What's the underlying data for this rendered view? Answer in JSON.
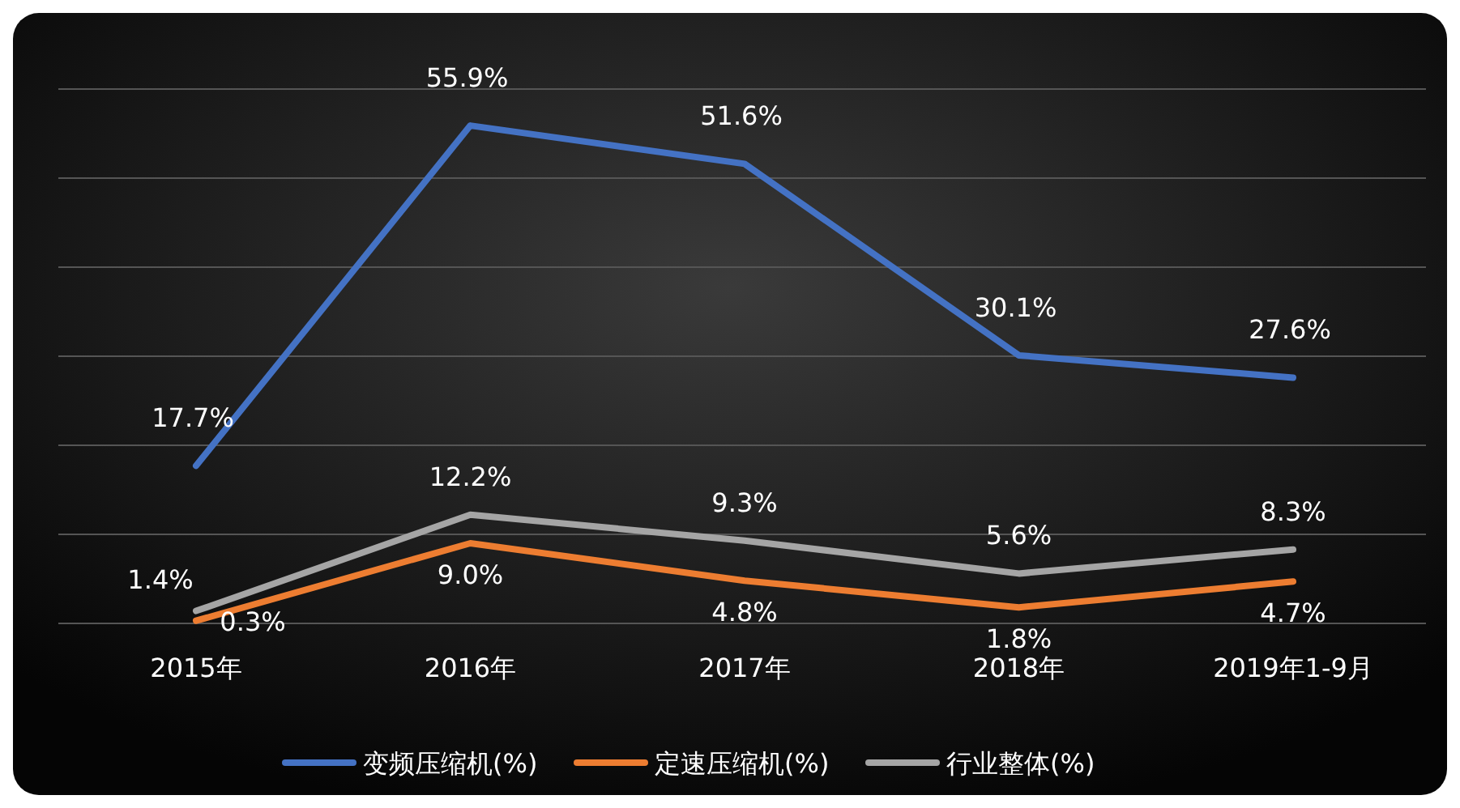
{
  "chart_data": {
    "type": "line",
    "categories": [
      "2015年",
      "2016年",
      "2017年",
      "2018年",
      "2019年1-9月"
    ],
    "series": [
      {
        "name": "变频压缩机(%)",
        "color": "#4472c4",
        "values": [
          17.7,
          55.9,
          51.6,
          30.1,
          27.6
        ],
        "value_labels": [
          "17.7%",
          "55.9%",
          "51.6%",
          "30.1%",
          "27.6%"
        ]
      },
      {
        "name": "定速压缩机(%)",
        "color": "#ed7d31",
        "values": [
          0.3,
          9.0,
          4.8,
          1.8,
          4.7
        ],
        "value_labels": [
          "0.3%",
          "9.0%",
          "4.8%",
          "1.8%",
          "4.7%"
        ]
      },
      {
        "name": "行业整体(%)",
        "color": "#a5a5a5",
        "values": [
          1.4,
          12.2,
          9.3,
          5.6,
          8.3
        ],
        "value_labels": [
          "1.4%",
          "12.2%",
          "9.3%",
          "5.6%",
          "8.3%"
        ]
      }
    ],
    "ylim": [
      0,
      60
    ],
    "yticks": [
      {
        "value": 0,
        "label": null
      },
      {
        "value": 10,
        "label": null
      },
      {
        "value": 20,
        "label": null
      },
      {
        "value": 30,
        "label": null
      },
      {
        "value": 40,
        "label": null
      },
      {
        "value": 50,
        "label": null
      },
      {
        "value": 60,
        "label": null
      }
    ],
    "grid": "y",
    "tick_labels": "x",
    "legend": "bottom",
    "marker": "none",
    "line_style": "solid"
  }
}
